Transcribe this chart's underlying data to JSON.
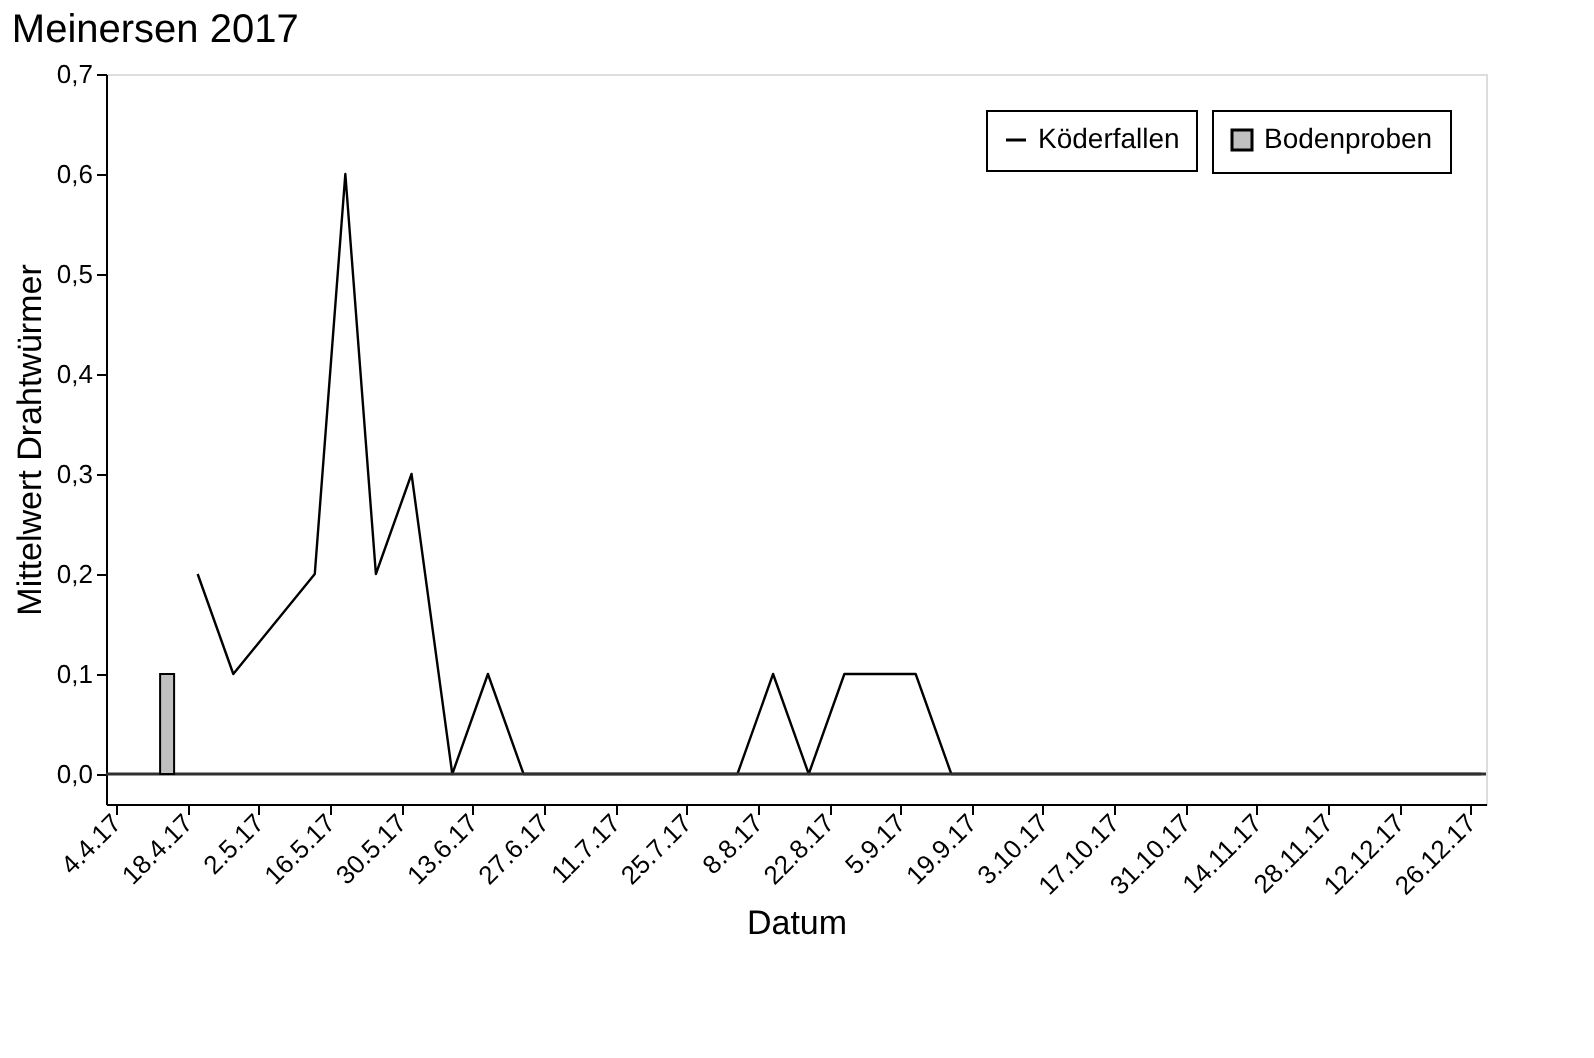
{
  "chart_data": {
    "type": "line",
    "title": "Meinersen 2017",
    "xlabel": "Datum",
    "ylabel": "Mittelwert Drahtwürmer",
    "series": [
      {
        "name": "Köderfallen",
        "color": "#000000",
        "x": [
          "2017-04-20",
          "2017-04-27",
          "2017-05-13",
          "2017-05-19",
          "2017-05-25",
          "2017-06-01",
          "2017-06-09",
          "2017-06-16",
          "2017-06-23",
          "2017-08-04",
          "2017-08-11",
          "2017-08-18",
          "2017-08-25",
          "2017-09-08",
          "2017-09-15",
          "2017-12-28"
        ],
        "values": [
          0.2,
          0.1,
          0.2,
          0.6,
          0.2,
          0.3,
          0,
          0.1,
          0,
          0,
          0.1,
          0,
          0.1,
          0.1,
          0,
          0
        ]
      },
      {
        "name": "Bodenproben",
        "type": "bar",
        "color": "#c0c0c0",
        "x": [
          "2017-04-14"
        ],
        "values": [
          0.1
        ]
      }
    ],
    "xlim": [
      "2017-04-02",
      "2017-12-29"
    ],
    "xticks": [
      {
        "value": "2017-04-04",
        "label": "4.4.17"
      },
      {
        "value": "2017-04-18",
        "label": "18.4.17"
      },
      {
        "value": "2017-05-02",
        "label": "2.5.17"
      },
      {
        "value": "2017-05-16",
        "label": "16.5.17"
      },
      {
        "value": "2017-05-30",
        "label": "30.5.17"
      },
      {
        "value": "2017-06-13",
        "label": "13.6.17"
      },
      {
        "value": "2017-06-27",
        "label": "27.6.17"
      },
      {
        "value": "2017-07-11",
        "label": "11.7.17"
      },
      {
        "value": "2017-07-25",
        "label": "25.7.17"
      },
      {
        "value": "2017-08-08",
        "label": "8.8.17"
      },
      {
        "value": "2017-08-22",
        "label": "22.8.17"
      },
      {
        "value": "2017-09-05",
        "label": "5.9.17"
      },
      {
        "value": "2017-09-19",
        "label": "19.9.17"
      },
      {
        "value": "2017-10-03",
        "label": "3.10.17"
      },
      {
        "value": "2017-10-17",
        "label": "17.10.17"
      },
      {
        "value": "2017-10-31",
        "label": "31.10.17"
      },
      {
        "value": "2017-11-14",
        "label": "14.11.17"
      },
      {
        "value": "2017-11-28",
        "label": "28.11.17"
      },
      {
        "value": "2017-12-12",
        "label": "12.12.17"
      },
      {
        "value": "2017-12-26",
        "label": "26.12.17"
      }
    ],
    "ylim": [
      -0.03,
      0.7
    ],
    "yticks": [
      {
        "value": 0,
        "label": "0,0"
      },
      {
        "value": 0.1,
        "label": "0,1"
      },
      {
        "value": 0.2,
        "label": "0,2"
      },
      {
        "value": 0.3,
        "label": "0,3"
      },
      {
        "value": 0.4,
        "label": "0,4"
      },
      {
        "value": 0.5,
        "label": "0,5"
      },
      {
        "value": 0.6,
        "label": "0,6"
      },
      {
        "value": 0.7,
        "label": "0,7"
      }
    ],
    "ref_lines": [
      {
        "axis": "y",
        "value": 0,
        "color": "#303030"
      }
    ],
    "grid": false,
    "legend": "top right",
    "marker": "none",
    "line_style": "solid"
  }
}
